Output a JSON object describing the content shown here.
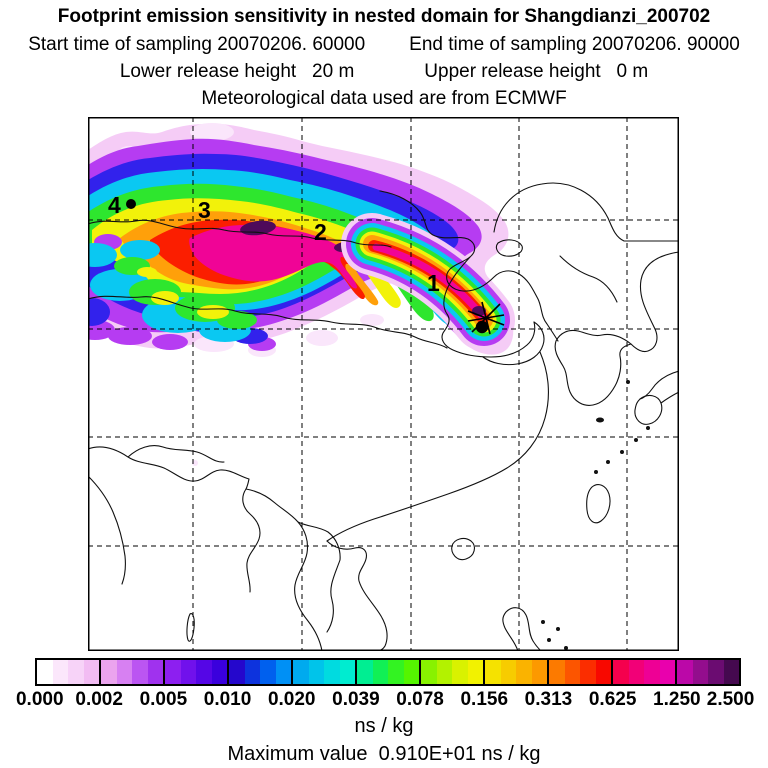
{
  "header": {
    "title": "Footprint emission sensitivity in nested domain for Shangdianzi_200702",
    "start_time": "Start time of sampling 20070206. 60000",
    "end_time": "End time of sampling 20070206. 90000",
    "lower_release": "Lower release height   20 m",
    "upper_release": "Upper release height   0 m",
    "met_source": "Meteorological data used are from ECMWF"
  },
  "map": {
    "points": [
      {
        "label": "1"
      },
      {
        "label": "2"
      },
      {
        "label": "3"
      },
      {
        "label": "4"
      }
    ],
    "source_site": "Shangdianzi"
  },
  "colorbar": {
    "tick_labels": [
      "0.000",
      "0.002",
      "0.005",
      "0.010",
      "0.020",
      "0.039",
      "0.078",
      "0.156",
      "0.313",
      "0.625",
      "1.250",
      "2.500"
    ],
    "units": "ns / kg",
    "segments": [
      {
        "from": "0.000",
        "to": "0.002",
        "colors": [
          "#ffffff",
          "#fbe7fb",
          "#f7d3f8",
          "#f2bcf3"
        ]
      },
      {
        "from": "0.002",
        "to": "0.005",
        "colors": [
          "#eba4ee",
          "#d780f2",
          "#bb55f2",
          "#a032ee"
        ]
      },
      {
        "from": "0.005",
        "to": "0.010",
        "colors": [
          "#8d1ff0",
          "#7111ec",
          "#5506e6",
          "#3a00dd"
        ]
      },
      {
        "from": "0.010",
        "to": "0.020",
        "colors": [
          "#2507cc",
          "#0d33dd",
          "#0060ee",
          "#0090f5"
        ]
      },
      {
        "from": "0.020",
        "to": "0.039",
        "colors": [
          "#00aaee",
          "#00c4ea",
          "#00dbe0",
          "#00ecd0"
        ]
      },
      {
        "from": "0.039",
        "to": "0.078",
        "colors": [
          "#00ee92",
          "#11f055",
          "#33f322",
          "#55f500"
        ]
      },
      {
        "from": "0.078",
        "to": "0.156",
        "colors": [
          "#88f200",
          "#b3f200",
          "#d9f200",
          "#f2f200"
        ]
      },
      {
        "from": "0.156",
        "to": "0.313",
        "colors": [
          "#f5e200",
          "#f7cc00",
          "#fab300",
          "#fc9900"
        ]
      },
      {
        "from": "0.313",
        "to": "0.625",
        "colors": [
          "#fc7a00",
          "#fc5500",
          "#fb2d00",
          "#f80800"
        ]
      },
      {
        "from": "0.625",
        "to": "1.250",
        "colors": [
          "#f5004d",
          "#f20077",
          "#ee0095",
          "#e900ad"
        ]
      },
      {
        "from": "1.250",
        "to": "2.500",
        "colors": [
          "#bb08a8",
          "#930d8d",
          "#6b0c71",
          "#45094f"
        ]
      }
    ]
  },
  "footer": {
    "max_value_line": "Maximum value  0.910E+01 ns / kg"
  },
  "chart_data": {
    "type": "heatmap",
    "title": "Footprint emission sensitivity in nested domain for Shangdianzi_200702",
    "station": "Shangdianzi_200702",
    "sampling_start": "20070206. 60000",
    "sampling_end": "20070206. 90000",
    "lower_release_height": "20 m",
    "upper_release_height": "0 m",
    "meteorology": "ECMWF",
    "units": "ns / kg",
    "maximum_value": "0.910E+01 ns / kg",
    "levels": [
      0.0,
      0.002,
      0.005,
      0.01,
      0.02,
      0.039,
      0.078,
      0.156,
      0.313,
      0.625,
      1.25,
      2.5
    ],
    "legend_position": "bottom",
    "grid": true,
    "basemap": "East Asia coastlines and borders with dashed lat/lon graticule (5 vertical, 4 horizontal lines)",
    "plume_description": "Comma-shaped sensitivity plume extending WNW from source near Beijing; highest values (magenta/dark purple) along plume axis and at source, decreasing outward through red, orange, yellow, green, cyan, blue, violet to pale pink fringe",
    "trajectory_markers": [
      "1",
      "2",
      "3",
      "4"
    ],
    "source_marker": "black dot with asterisk star at plume origin"
  }
}
